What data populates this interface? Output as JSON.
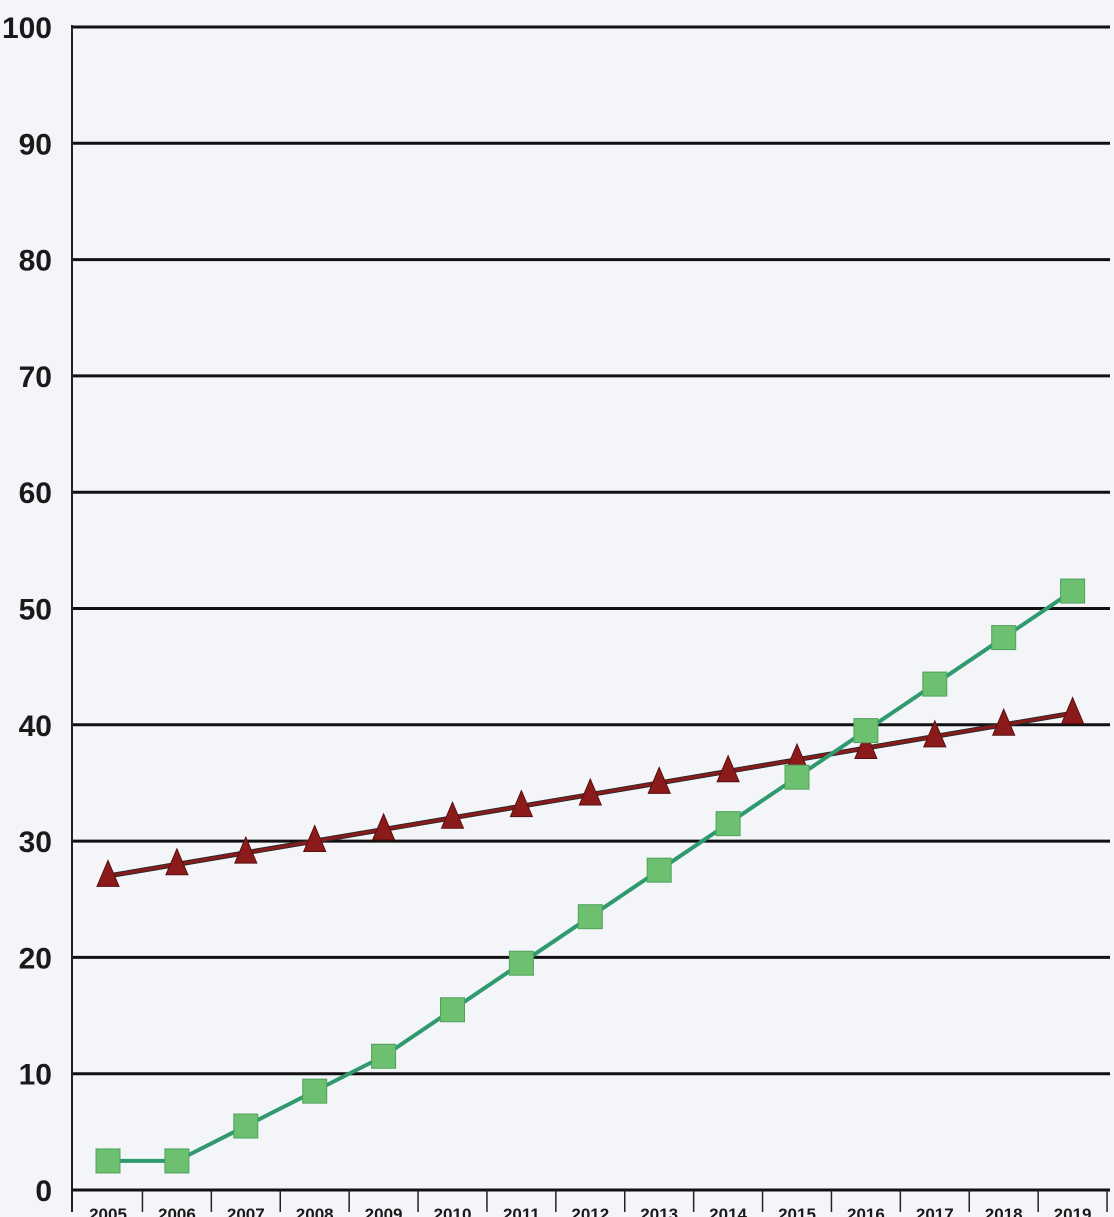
{
  "chart_data": {
    "type": "line",
    "categories": [
      "2005",
      "2006",
      "2007",
      "2008",
      "2009",
      "2010",
      "2011",
      "2012",
      "2013",
      "2014",
      "2015",
      "2016",
      "2017",
      "2018",
      "2019"
    ],
    "y_ticks": [
      "0",
      "10",
      "20",
      "30",
      "40",
      "50",
      "60",
      "70",
      "80",
      "90",
      "100"
    ],
    "ylim": [
      0,
      100
    ],
    "grid": true,
    "legend": "none",
    "series": [
      {
        "marker": "triangle",
        "color": "#8b1a1a",
        "values": [
          27,
          28,
          29,
          30,
          31,
          32,
          33,
          34,
          35,
          36,
          37,
          38,
          39,
          40,
          41
        ]
      },
      {
        "marker": "square",
        "color": "#6cc070",
        "line_color": "#2e9a6e",
        "values": [
          2.5,
          2.5,
          5.5,
          8.5,
          11.5,
          15.5,
          19.5,
          23.5,
          27.5,
          31.5,
          35.5,
          39.5,
          43.5,
          47.5,
          51.5
        ]
      }
    ]
  }
}
